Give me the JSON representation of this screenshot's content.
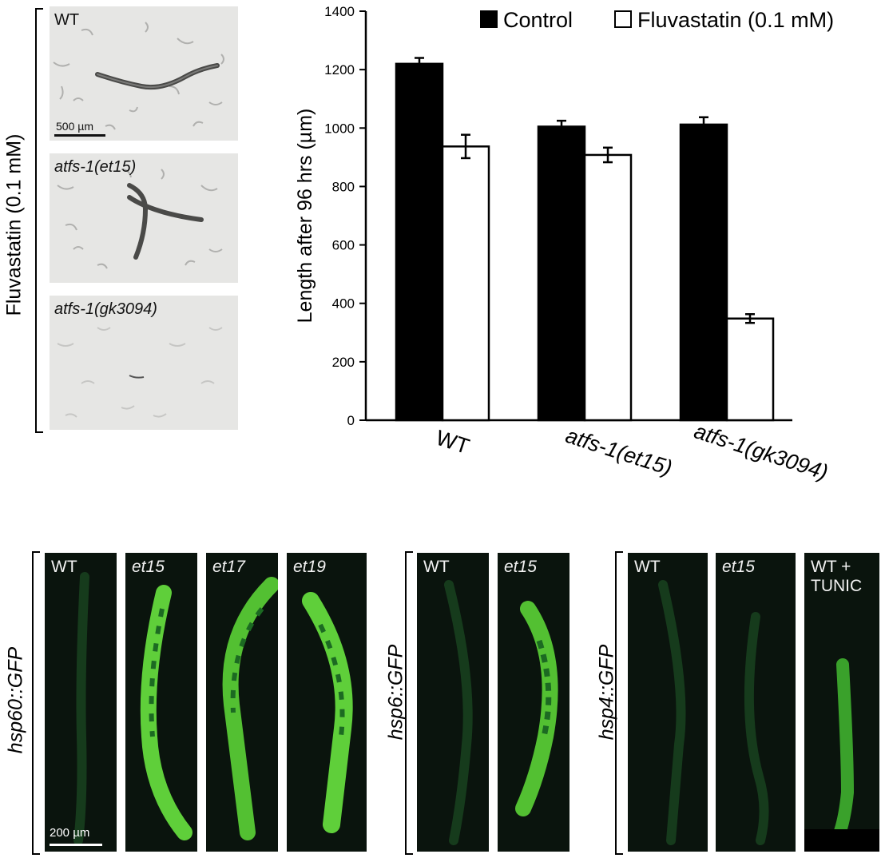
{
  "top_left": {
    "side_label": "Fluvastatin (0.1 mM)",
    "panels": [
      {
        "label": "WT",
        "italic": false
      },
      {
        "label": "atfs-1(et15)",
        "italic": true
      },
      {
        "label": "atfs-1(gk3094)",
        "italic": true
      }
    ],
    "scale_bar": "500 µm"
  },
  "chart_data": {
    "type": "bar",
    "categories": [
      "WT",
      "atfs-1(et15)",
      "atfs-1(gk3094)"
    ],
    "series": [
      {
        "name": "Control",
        "values": [
          1220,
          1005,
          1012
        ],
        "errors": [
          20,
          20,
          25
        ],
        "color": "#000000"
      },
      {
        "name": "Fluvastatin (0.1 mM)",
        "values": [
          937,
          908,
          348
        ],
        "errors": [
          40,
          25,
          15
        ],
        "color": "#ffffff"
      }
    ],
    "ylabel": "Length after 96 hrs (µm)",
    "xlabel": "",
    "ylim": [
      0,
      1400
    ],
    "yticks": [
      "0",
      "200",
      "400",
      "600",
      "800",
      "1000",
      "1200",
      "1400"
    ],
    "legend_position": "top",
    "grid": false
  },
  "bottom": {
    "groups": [
      {
        "side_label": "hsp60::GFP",
        "panels": [
          {
            "label": "WT",
            "italic": false
          },
          {
            "label": "et15",
            "italic": true
          },
          {
            "label": "et17",
            "italic": true
          },
          {
            "label": "et19",
            "italic": true
          }
        ]
      },
      {
        "side_label": "hsp6::GFP",
        "panels": [
          {
            "label": "WT",
            "italic": false
          },
          {
            "label": "et15",
            "italic": true
          }
        ]
      },
      {
        "side_label": "hsp4::GFP",
        "panels": [
          {
            "label": "WT",
            "italic": false
          },
          {
            "label": "et15",
            "italic": true
          },
          {
            "label": "WT +\nTUNIC",
            "italic": false
          }
        ]
      }
    ],
    "scale_bar": "200 µm"
  }
}
